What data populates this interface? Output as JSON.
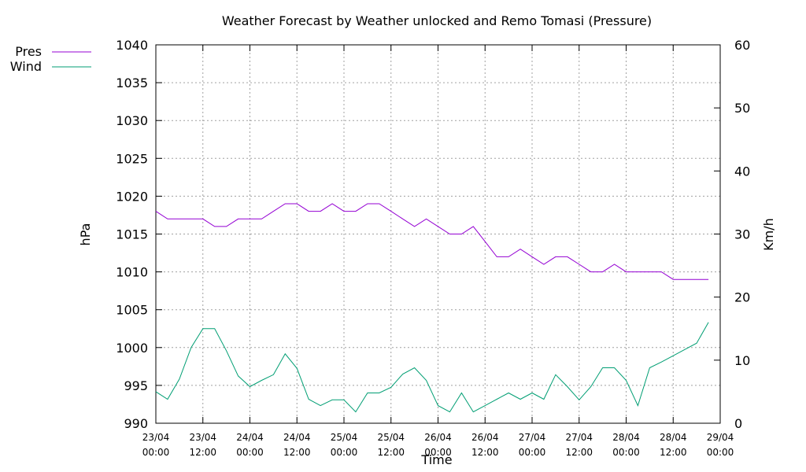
{
  "chart_data": {
    "type": "line",
    "title": "Weather Forecast by Weather unlocked and Remo Tomasi (Pressure)",
    "xlabel": "Time",
    "ylabel": "hPa",
    "y2label": "Km/h",
    "ylim": [
      990,
      1040
    ],
    "y2lim": [
      0,
      60
    ],
    "yticks": [
      "990",
      "995",
      "1000",
      "1005",
      "1010",
      "1015",
      "1020",
      "1025",
      "1030",
      "1035",
      "1040"
    ],
    "y2ticks": [
      "0",
      "10",
      "20",
      "30",
      "40",
      "50",
      "60"
    ],
    "xticks": [
      {
        "date": "23/04",
        "time": "00:00"
      },
      {
        "date": "23/04",
        "time": "12:00"
      },
      {
        "date": "24/04",
        "time": "00:00"
      },
      {
        "date": "24/04",
        "time": "12:00"
      },
      {
        "date": "25/04",
        "time": "00:00"
      },
      {
        "date": "25/04",
        "time": "12:00"
      },
      {
        "date": "26/04",
        "time": "00:00"
      },
      {
        "date": "26/04",
        "time": "12:00"
      },
      {
        "date": "27/04",
        "time": "00:00"
      },
      {
        "date": "27/04",
        "time": "12:00"
      },
      {
        "date": "28/04",
        "time": "00:00"
      },
      {
        "date": "28/04",
        "time": "12:00"
      },
      {
        "date": "29/04",
        "time": "00:00"
      }
    ],
    "grid": true,
    "legend_position": "top-left",
    "x_time_hours": [
      0,
      3,
      6,
      9,
      12,
      15,
      18,
      21,
      24,
      27,
      30,
      33,
      36,
      39,
      42,
      45,
      48,
      51,
      54,
      57,
      60,
      63,
      66,
      69,
      72,
      75,
      78,
      81,
      84,
      87,
      90,
      93,
      96,
      99,
      102,
      105,
      108,
      111,
      114,
      117,
      120,
      123,
      126,
      129,
      132,
      135,
      138,
      141
    ],
    "series": [
      {
        "name": "Pres",
        "axis": "left",
        "color": "#9400d3",
        "values": [
          1018,
          1017,
          1017,
          1017,
          1017,
          1016,
          1016,
          1017,
          1017,
          1017,
          1018,
          1019,
          1019,
          1018,
          1018,
          1019,
          1018,
          1018,
          1019,
          1019,
          1018,
          1017,
          1016,
          1017,
          1016,
          1015,
          1015,
          1016,
          1014,
          1012,
          1012,
          1013,
          1012,
          1011,
          1012,
          1012,
          1011,
          1010,
          1010,
          1011,
          1010,
          1010,
          1010,
          1010,
          1009,
          1009,
          1009,
          1009
        ]
      },
      {
        "name": "Wind",
        "axis": "right",
        "color": "#009e73",
        "values": [
          5,
          3.8,
          7,
          12,
          15,
          15,
          11.5,
          7.5,
          5.8,
          6.8,
          7.7,
          11,
          8.7,
          3.8,
          2.8,
          3.7,
          3.7,
          1.8,
          4.8,
          4.8,
          5.7,
          7.8,
          8.8,
          6.8,
          2.8,
          1.8,
          4.8,
          1.8,
          2.8,
          3.8,
          4.8,
          3.8,
          4.8,
          3.8,
          7.7,
          5.8,
          3.7,
          5.8,
          8.8,
          8.8,
          6.8,
          2.8,
          8.8,
          9.7,
          10.7,
          11.7,
          12.7,
          16
        ]
      }
    ]
  }
}
